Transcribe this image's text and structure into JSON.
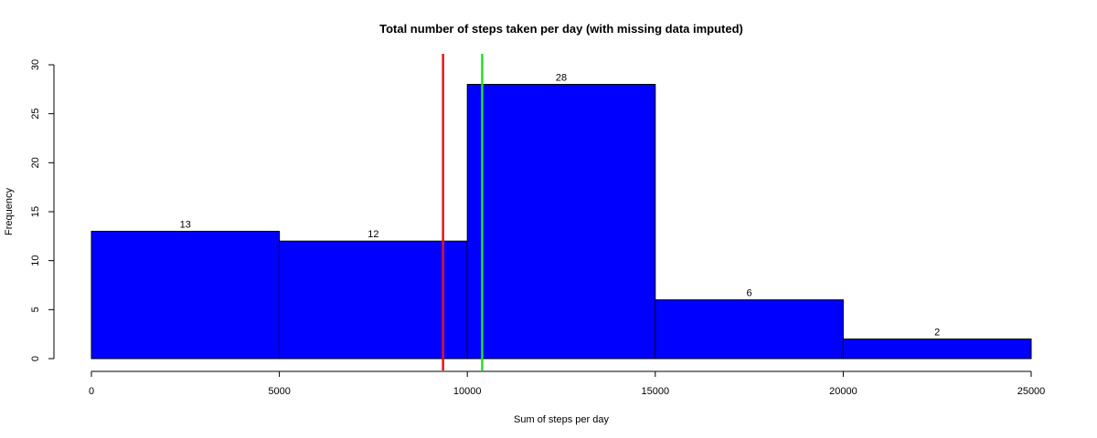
{
  "chart_data": {
    "type": "bar",
    "title": "Total number of steps taken per day (with missing data imputed)",
    "xlabel": "Sum of steps per day",
    "ylabel": "Frequency",
    "bins": [
      {
        "from": 0,
        "to": 5000,
        "count": 13,
        "label": "13"
      },
      {
        "from": 5000,
        "to": 10000,
        "count": 12,
        "label": "12"
      },
      {
        "from": 10000,
        "to": 15000,
        "count": 28,
        "label": "28"
      },
      {
        "from": 15000,
        "to": 20000,
        "count": 6,
        "label": "6"
      },
      {
        "from": 20000,
        "to": 25000,
        "count": 2,
        "label": "2"
      }
    ],
    "xlim": [
      0,
      25000
    ],
    "ylim": [
      0,
      30
    ],
    "x_ticks": [
      "0",
      "5000",
      "10000",
      "15000",
      "20000",
      "25000"
    ],
    "y_ticks": [
      "0",
      "5",
      "10",
      "15",
      "20",
      "25",
      "30"
    ],
    "vertical_lines": [
      {
        "x": 9354,
        "color": "#e8141c"
      },
      {
        "x": 10395,
        "color": "#22e02a"
      }
    ],
    "bar_color": "#0000ff",
    "grid": false
  }
}
